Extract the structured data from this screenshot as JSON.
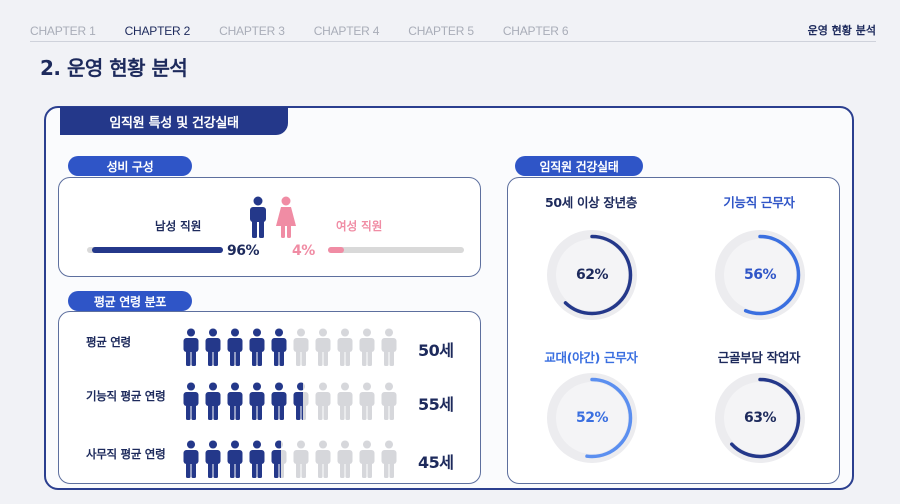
{
  "nav": {
    "tabs": [
      "CHAPTER 1",
      "CHAPTER 2",
      "CHAPTER 3",
      "CHAPTER 4",
      "CHAPTER 5",
      "CHAPTER 6"
    ],
    "active_index": 1,
    "section_label": "운영 현황 분석"
  },
  "page_title": "2. 운영 현황 분석",
  "main_header": "임직원 특성 및 건강실태",
  "gender": {
    "title": "성비 구성",
    "male_label": "남성 직원",
    "female_label": "여성 직원",
    "male_pct_text": "96%",
    "female_pct_text": "4%",
    "male_fraction": 0.96,
    "female_fraction": 0.04,
    "male_color": "#24388a",
    "female_color": "#f08ca4"
  },
  "age": {
    "title": "평균 연령 분포",
    "rows": [
      {
        "label": "평균 연령",
        "value": "50세",
        "filled": 5.0
      },
      {
        "label": "기능직 평균 연령",
        "value": "55세",
        "filled": 5.5
      },
      {
        "label": "사무직 평균 연령",
        "value": "45세",
        "filled": 4.5
      }
    ],
    "icon_count": 10
  },
  "health": {
    "title": "임직원 건강실태",
    "items": [
      {
        "title": "50세 이상 장년층",
        "value": "62%",
        "fraction": 0.62,
        "color": "#24388a",
        "text_color": "#1d2a5c"
      },
      {
        "title": "기능직 근무자",
        "value": "56%",
        "fraction": 0.56,
        "color": "#3a6fe0",
        "text_color": "#2f55c7"
      },
      {
        "title": "교대(야간) 근무자",
        "value": "52%",
        "fraction": 0.52,
        "color": "#5b8ff0",
        "text_color": "#3a6fe0"
      },
      {
        "title": "근골부담 작업자",
        "value": "63%",
        "fraction": 0.63,
        "color": "#24388a",
        "text_color": "#1d2a5c"
      }
    ]
  }
}
